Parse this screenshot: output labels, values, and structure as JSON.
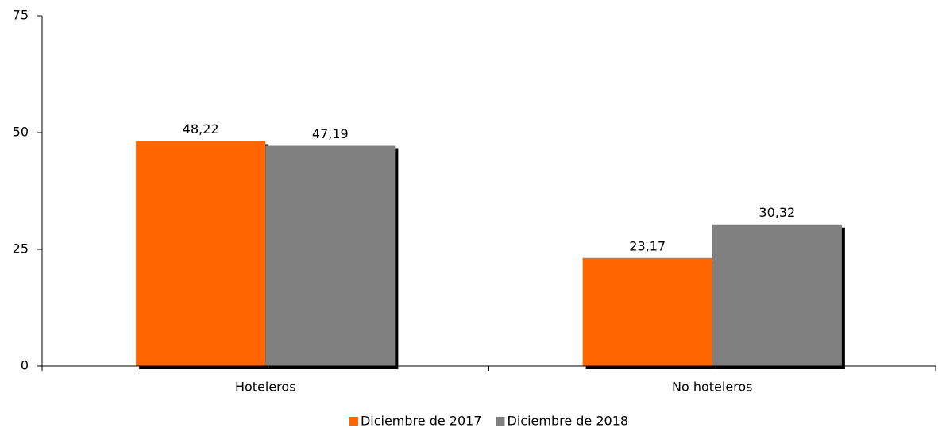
{
  "chart_data": {
    "type": "bar",
    "categories": [
      "Hoteleros",
      "No hoteleros"
    ],
    "series": [
      {
        "name": "Diciembre de 2017",
        "color": "#ff6600",
        "values": [
          48.22,
          23.17
        ],
        "value_labels": [
          "48,22",
          "23,17"
        ]
      },
      {
        "name": "Diciembre de 2018",
        "color": "#808080",
        "values": [
          47.19,
          30.32
        ],
        "value_labels": [
          "47,19",
          "30,32"
        ]
      }
    ],
    "ylim": [
      0,
      75
    ],
    "yticks": [
      0,
      25,
      50,
      75
    ],
    "grid": false,
    "legend": "bottom"
  }
}
